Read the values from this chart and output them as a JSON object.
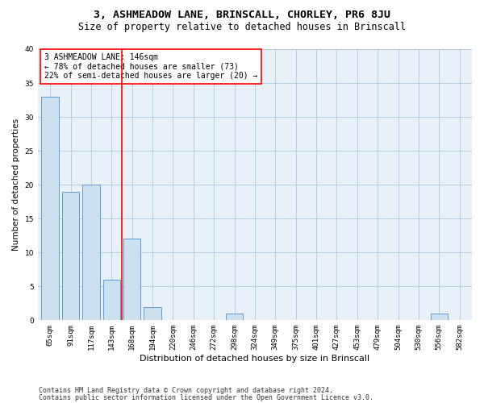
{
  "title1": "3, ASHMEADOW LANE, BRINSCALL, CHORLEY, PR6 8JU",
  "title2": "Size of property relative to detached houses in Brinscall",
  "xlabel": "Distribution of detached houses by size in Brinscall",
  "ylabel": "Number of detached properties",
  "categories": [
    "65sqm",
    "91sqm",
    "117sqm",
    "143sqm",
    "168sqm",
    "194sqm",
    "220sqm",
    "246sqm",
    "272sqm",
    "298sqm",
    "324sqm",
    "349sqm",
    "375sqm",
    "401sqm",
    "427sqm",
    "453sqm",
    "479sqm",
    "504sqm",
    "530sqm",
    "556sqm",
    "582sqm"
  ],
  "values": [
    33,
    19,
    20,
    6,
    12,
    2,
    0,
    0,
    0,
    1,
    0,
    0,
    0,
    0,
    0,
    0,
    0,
    0,
    0,
    1,
    0
  ],
  "bar_color": "#cce0f0",
  "bar_edge_color": "#5b9bd5",
  "red_line_index": 3,
  "ylim": [
    0,
    40
  ],
  "yticks": [
    0,
    5,
    10,
    15,
    20,
    25,
    30,
    35,
    40
  ],
  "annotation_title": "3 ASHMEADOW LANE: 146sqm",
  "annotation_line1": "← 78% of detached houses are smaller (73)",
  "annotation_line2": "22% of semi-detached houses are larger (20) →",
  "footnote1": "Contains HM Land Registry data © Crown copyright and database right 2024.",
  "footnote2": "Contains public sector information licensed under the Open Government Licence v3.0.",
  "bg_color": "#ffffff",
  "axes_bg_color": "#e8f0f8",
  "grid_color": "#aec6d8",
  "title1_fontsize": 9.5,
  "title2_fontsize": 8.5,
  "xlabel_fontsize": 8,
  "ylabel_fontsize": 7.5,
  "tick_fontsize": 6.5,
  "annot_fontsize": 7,
  "footnote_fontsize": 6
}
